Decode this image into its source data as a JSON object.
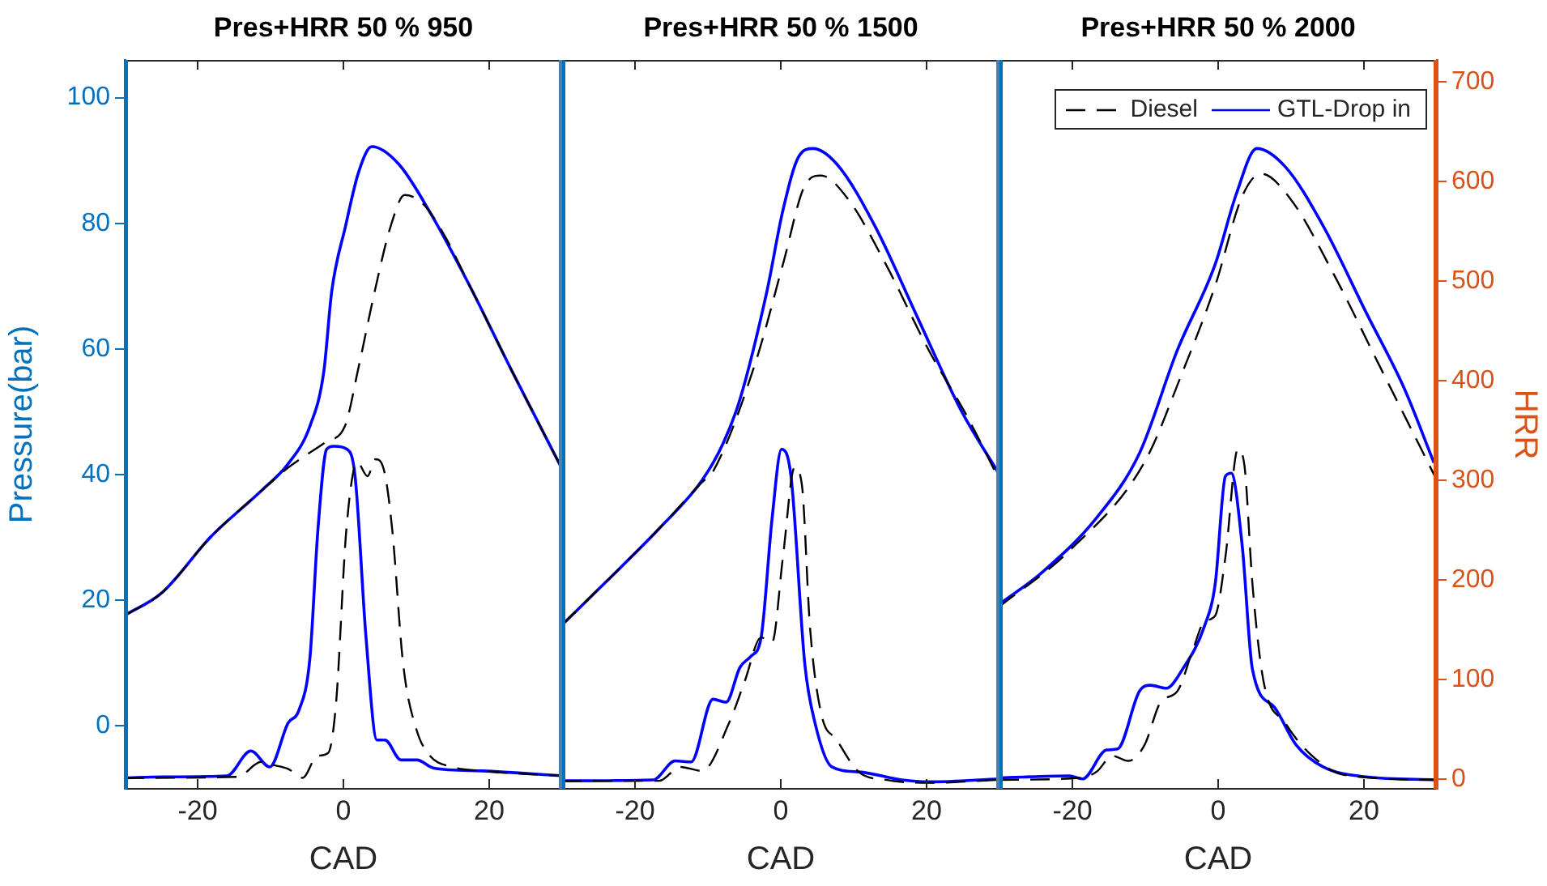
{
  "chart_data": [
    {
      "type": "line",
      "title": "Pres+HRR 50 % 950",
      "xlabel": "CAD",
      "ylabel": "Pressure(bar)",
      "xlim": [
        -30,
        30
      ],
      "xticks": [
        -20,
        0,
        20
      ],
      "ylim": [
        -10,
        106
      ],
      "yticks": [
        0,
        20,
        40,
        60,
        80,
        100
      ],
      "y2lim": [
        -10,
        722
      ],
      "tick_labels": [
        "x",
        "y"
      ],
      "marker": "none",
      "series": [
        {
          "color": "#000000",
          "line_style": "dashed",
          "axis": "y",
          "x": [
            -30,
            -24.9,
            -18.2,
            -11.3,
            -7.6,
            -2.4,
            0.2,
            2.1,
            4.3,
            6.5,
            8.4,
            11.0,
            14.0,
            17.3,
            23.2,
            30
          ],
          "values": [
            17.6,
            21.2,
            30.1,
            37.4,
            41.1,
            45.2,
            47.7,
            57.2,
            69.2,
            79.6,
            84.5,
            83,
            77.8,
            70.1,
            56.3,
            40.9
          ]
        },
        {
          "color": "#0000ff",
          "line_style": "solid",
          "axis": "y",
          "x": [
            -30,
            -24.9,
            -18.2,
            -11.3,
            -7.6,
            -4.6,
            -2.7,
            -1.6,
            0.3,
            2.1,
            3.9,
            7.6,
            12.1,
            17.3,
            23.2,
            30
          ],
          "values": [
            17.6,
            21.2,
            30.1,
            37.4,
            41.7,
            47.7,
            56.3,
            69.2,
            79.6,
            88.2,
            92.2,
            89.4,
            81.3,
            70.1,
            56.3,
            40.9
          ]
        },
        {
          "color": "#000000",
          "line_style": "dashed",
          "axis": "y2",
          "x": [
            -30,
            -14.5,
            -11.3,
            -9.7,
            -7.6,
            -5.6,
            -3.6,
            -2.1,
            -1.0,
            0.4,
            1.9,
            3.3,
            4.4,
            5.6,
            6.7,
            8.2,
            10,
            11.9,
            14.9,
            19,
            30
          ],
          "values": [
            1,
            2,
            17,
            14,
            10,
            1,
            23,
            26,
            77,
            250,
            318,
            304,
            321,
            309,
            250,
            115,
            50,
            23,
            12,
            8,
            3
          ]
        },
        {
          "color": "#0000ff",
          "line_style": "solid",
          "axis": "y2",
          "x": [
            -30,
            -24.9,
            -16,
            -12.7,
            -10.1,
            -7.6,
            -6.1,
            -4.6,
            -3.5,
            -2.3,
            -1.3,
            0.5,
            1.6,
            3.1,
            4.6,
            5.7,
            7.9,
            10.1,
            12.3,
            19,
            30
          ],
          "values": [
            1,
            2,
            3,
            28,
            12,
            56,
            69,
            121,
            250,
            331,
            334,
            331,
            304,
            142,
            39,
            39,
            19,
            19,
            11,
            8,
            3
          ]
        }
      ]
    },
    {
      "type": "line",
      "title": "Pres+HRR 50 % 1500",
      "xlabel": "CAD",
      "xlim": [
        -30,
        30
      ],
      "xticks": [
        -20,
        0,
        20
      ],
      "ylim": [
        -10,
        106
      ],
      "y2lim": [
        -10,
        722
      ],
      "tick_labels": [
        "x"
      ],
      "marker": "none",
      "series": [
        {
          "color": "#000000",
          "line_style": "dashed",
          "axis": "y",
          "x": [
            -30,
            -24.1,
            -16.7,
            -10.8,
            -9.3,
            -3.4,
            0.3,
            3.3,
            5.5,
            9.2,
            14.4,
            20.3,
            25.5,
            30
          ],
          "values": [
            16.1,
            22.8,
            31.4,
            38.8,
            40.5,
            58.1,
            73.5,
            86,
            87.6,
            83.9,
            73.5,
            59.8,
            49.4,
            39.1
          ]
        },
        {
          "color": "#0000ff",
          "line_style": "solid",
          "axis": "y",
          "x": [
            -30,
            -24.1,
            -16.7,
            -10.8,
            -7.9,
            -5.6,
            -1.9,
            0.3,
            2.5,
            4.4,
            7.7,
            12.9,
            18.8,
            24.7,
            30
          ],
          "values": [
            16.1,
            22.8,
            31.4,
            39.1,
            45,
            52,
            69.2,
            82.1,
            90.7,
            91.9,
            89.4,
            79.6,
            64.9,
            50.3,
            40
          ]
        },
        {
          "color": "#000000",
          "line_style": "dashed",
          "axis": "y2",
          "x": [
            -30,
            -16.7,
            -13.8,
            -10.8,
            -7.1,
            -4.9,
            -2.7,
            -1.2,
            0.3,
            1.9,
            2.9,
            4,
            5.5,
            7.7,
            10.7,
            14.4,
            20.3,
            30
          ],
          "values": [
            -2,
            -2,
            12,
            8,
            56,
            99,
            142,
            137,
            223,
            313,
            295,
            153,
            67,
            39,
            7,
            -1,
            -4,
            -1
          ]
        },
        {
          "color": "#0000ff",
          "line_style": "solid",
          "axis": "y2",
          "x": [
            -30,
            -17.5,
            -14.5,
            -12.3,
            -9.3,
            -7.5,
            -5.6,
            -4.1,
            -2.7,
            -1.2,
            0.1,
            1.4,
            3.3,
            4.7,
            7,
            10.7,
            16.6,
            20.3,
            30
          ],
          "values": [
            -2,
            -1,
            18,
            17,
            80,
            77,
            112,
            123,
            142,
            261,
            331,
            304,
            115,
            56,
            12,
            7,
            -1,
            -3,
            0
          ]
        }
      ]
    },
    {
      "type": "line",
      "title": "Pres+HRR 50 % 2000",
      "xlabel": "CAD",
      "y2label": "HRR",
      "xlim": [
        -30,
        30
      ],
      "xticks": [
        -20,
        0,
        20
      ],
      "ylim": [
        -10,
        106
      ],
      "y2lim": [
        -10,
        722
      ],
      "y2ticks": [
        0,
        100,
        200,
        300,
        400,
        500,
        600,
        700
      ],
      "tick_labels": [
        "x",
        "y2"
      ],
      "marker": "none",
      "legend": "top right",
      "series": [
        {
          "name": "Diesel",
          "color": "#000000",
          "line_style": "dashed",
          "axis": "y",
          "x": [
            -30,
            -20.4,
            -10.1,
            -4.9,
            -0.4,
            3.3,
            5.9,
            9.9,
            15.9,
            21.8,
            30
          ],
          "values": [
            19,
            27.9,
            42,
            56.3,
            70.1,
            84.3,
            87.9,
            83.9,
            71.8,
            58.1,
            39.1
          ]
        },
        {
          "name": "GTL-Drop in",
          "color": "#0000ff",
          "line_style": "solid",
          "axis": "y",
          "x": [
            -30,
            -24.1,
            -16.7,
            -10.8,
            -5.6,
            -0.4,
            2.5,
            5.3,
            9.2,
            14.4,
            20.3,
            25.5,
            29.6
          ],
          "values": [
            19.4,
            24.5,
            33.1,
            43.4,
            59.8,
            73.5,
            84.7,
            91.9,
            89,
            79.6,
            65.8,
            53.8,
            41.9
          ]
        },
        {
          "color": "#000000",
          "line_style": "dashed",
          "axis": "y2",
          "x": [
            -30,
            -19,
            -16.7,
            -14.5,
            -12.3,
            -10.1,
            -7.9,
            -5.6,
            -3.4,
            -1.9,
            -0.4,
            1,
            2.7,
            3.6,
            4.7,
            6.2,
            9.2,
            12.9,
            17.3,
            30
          ],
          "values": [
            -1,
            1,
            7,
            23,
            18,
            34,
            77,
            88,
            131,
            158,
            164,
            223,
            331,
            315,
            196,
            99,
            56,
            23,
            4,
            -1
          ]
        },
        {
          "color": "#0000ff",
          "line_style": "solid",
          "axis": "y2",
          "x": [
            -30,
            -20.4,
            -18.6,
            -15.3,
            -13.8,
            -10.8,
            -9.3,
            -7.1,
            -4.9,
            -1.9,
            -0.4,
            1,
            1.8,
            3.3,
            4.7,
            7.7,
            10.7,
            14.4,
            20.3,
            30
          ],
          "values": [
            1,
            3,
            0,
            29,
            30,
            88,
            94,
            91,
            110,
            153,
            196,
            304,
            307,
            234,
            110,
            72,
            34,
            12,
            2,
            -1
          ]
        }
      ]
    }
  ]
}
